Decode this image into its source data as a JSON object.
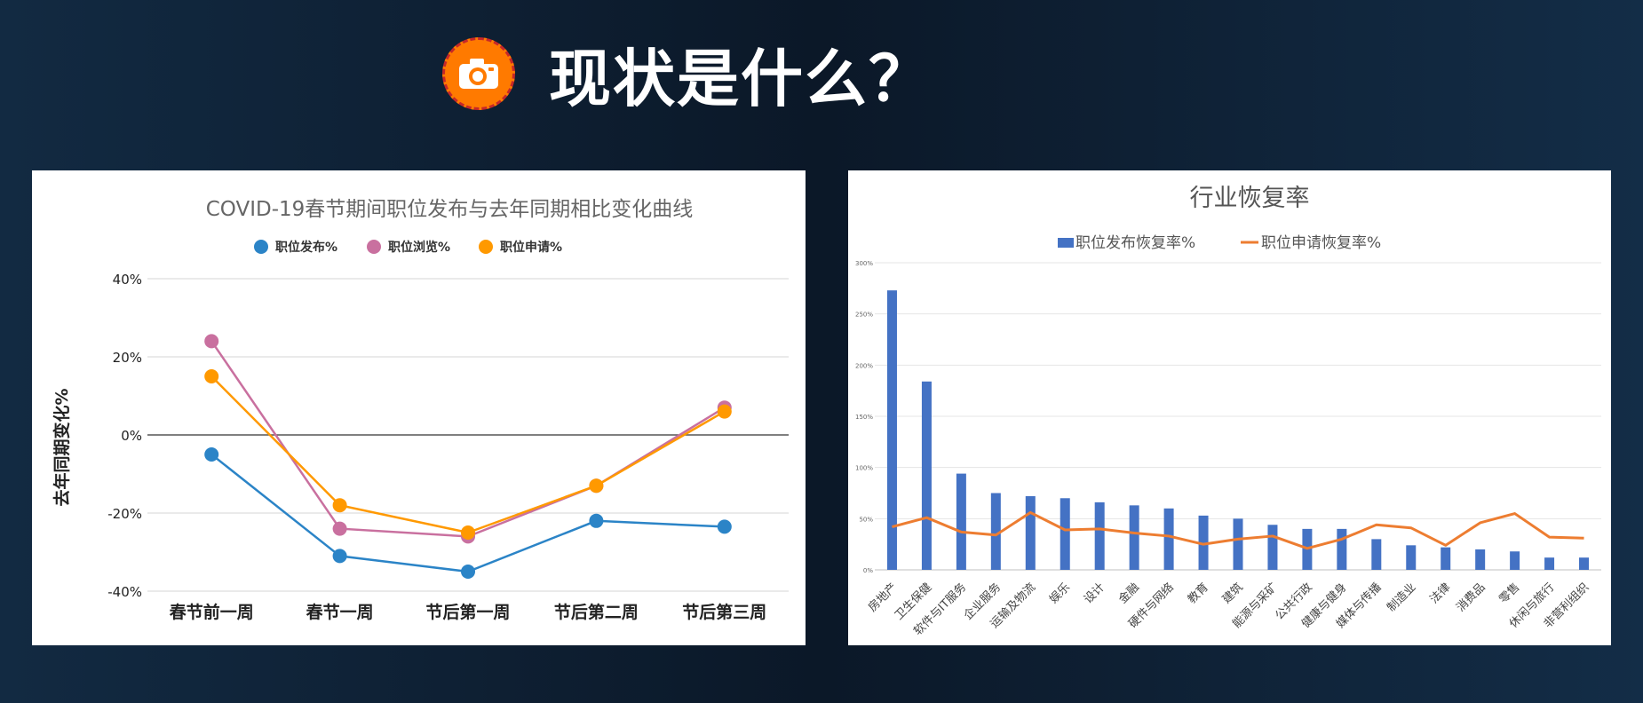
{
  "page": {
    "title": "现状是什么？",
    "accent_color": "#ff7a00",
    "icon": "camera-icon"
  },
  "chart_data": [
    {
      "type": "line",
      "title": "COVID-19春节期间职位发布与去年同期相比变化曲线",
      "xlabel": "",
      "ylabel": "去年同期变化%",
      "categories": [
        "春节前一周",
        "春节一周",
        "节后第一周",
        "节后第二周",
        "节后第三周"
      ],
      "ylim": [
        -40,
        40
      ],
      "yticks": [
        40,
        20,
        0,
        -20,
        -40
      ],
      "ytick_labels": [
        "40%",
        "20%",
        "0%",
        "-20%",
        "-40%"
      ],
      "grid": true,
      "legend_position": "top",
      "series": [
        {
          "name": "职位发布%",
          "color": "#2b84c7",
          "values": [
            -5,
            -31,
            -35,
            -22,
            -23.5
          ]
        },
        {
          "name": "职位浏览%",
          "color": "#c9709f",
          "values": [
            24,
            -24,
            -26,
            -13,
            7
          ]
        },
        {
          "name": "职位申请%",
          "color": "#ff9900",
          "values": [
            15,
            -18,
            -25,
            -13,
            6
          ]
        }
      ]
    },
    {
      "type": "bar",
      "title": "行业恢复率",
      "xlabel": "",
      "ylabel": "",
      "categories": [
        "房地产",
        "卫生保健",
        "软件与IT服务",
        "企业服务",
        "运输及物流",
        "娱乐",
        "设计",
        "金融",
        "硬件与网络",
        "教育",
        "建筑",
        "能源与采矿",
        "公共行政",
        "健康与健身",
        "媒体与传播",
        "制造业",
        "法律",
        "消费品",
        "零售",
        "休闲与旅行",
        "非营利组织"
      ],
      "ylim": [
        0,
        300
      ],
      "yticks": [
        0,
        50,
        100,
        150,
        200,
        250,
        300
      ],
      "ytick_labels": [
        "0%",
        "50%",
        "100%",
        "150%",
        "200%",
        "250%",
        "300%"
      ],
      "grid": true,
      "legend_position": "top",
      "series": [
        {
          "name": "职位发布恢复率%",
          "kind": "bar",
          "color": "#4472c4",
          "values": [
            273,
            184,
            94,
            75,
            72,
            70,
            66,
            63,
            60,
            53,
            50,
            44,
            40,
            40,
            30,
            24,
            22,
            20,
            18,
            12,
            12
          ]
        },
        {
          "name": "职位申请恢复率%",
          "kind": "line",
          "color": "#ed7d31",
          "values": [
            42,
            51,
            37,
            34,
            56,
            39,
            40,
            36,
            33,
            25,
            30,
            33,
            21,
            30,
            44,
            41,
            24,
            46,
            55,
            32,
            31
          ]
        }
      ]
    }
  ]
}
